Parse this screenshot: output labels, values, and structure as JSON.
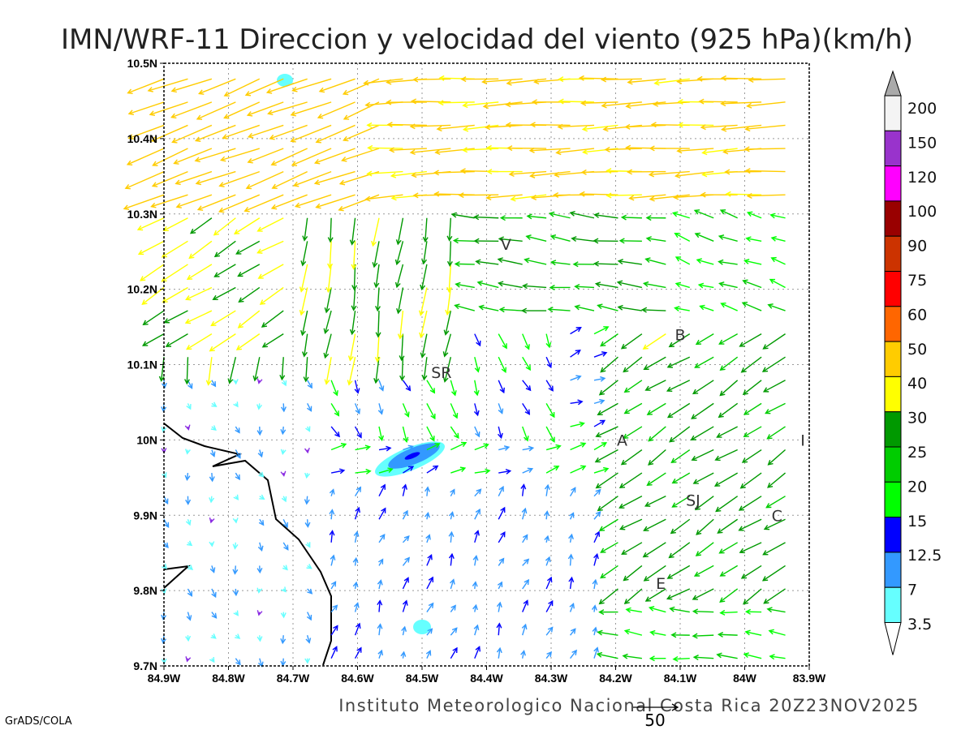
{
  "title": "IMN/WRF-11 Direccion y velocidad del viento (925 hPa)(km/h)",
  "footer": "Instituto Meteorologico Nacional Costa Rica  20Z23NOV2025",
  "credit": "GrADS/COLA",
  "ref_vector": {
    "label": "50",
    "value": 50
  },
  "chart_data": {
    "type": "vector-field",
    "lon_range": [
      -84.9,
      -83.9
    ],
    "lat_range": [
      9.7,
      10.5
    ],
    "x_ticks": [
      "84.9W",
      "84.8W",
      "84.7W",
      "84.6W",
      "84.5W",
      "84.4W",
      "84.3W",
      "84.2W",
      "84.1W",
      "84W",
      "83.9W"
    ],
    "y_ticks": [
      "9.7N",
      "9.8N",
      "9.9N",
      "10N",
      "10.1N",
      "10.2N",
      "10.3N",
      "10.4N",
      "10.5N"
    ],
    "grid": true,
    "stations": [
      {
        "label": "V",
        "lon": -84.37,
        "lat": 10.26
      },
      {
        "label": "SR",
        "lon": -84.47,
        "lat": 10.09
      },
      {
        "label": "B",
        "lon": -84.1,
        "lat": 10.14
      },
      {
        "label": "A",
        "lon": -84.19,
        "lat": 10.0
      },
      {
        "label": "I",
        "lon": -83.91,
        "lat": 10.0
      },
      {
        "label": "SJ",
        "lon": -84.08,
        "lat": 9.92
      },
      {
        "label": "C",
        "lon": -83.95,
        "lat": 9.9
      },
      {
        "label": "E",
        "lon": -84.13,
        "lat": 9.81
      }
    ]
  },
  "colorbar": {
    "labels": [
      "200",
      "150",
      "120",
      "100",
      "90",
      "75",
      "60",
      "50",
      "40",
      "30",
      "25",
      "20",
      "15",
      "12.5",
      "7",
      "3.5"
    ],
    "colors": [
      "#f4f4f4",
      "#9933cc",
      "#ff00ff",
      "#990000",
      "#cc3300",
      "#ff0000",
      "#ff6600",
      "#ffcc00",
      "#ffff00",
      "#009900",
      "#00cc00",
      "#00ff00",
      "#0000ff",
      "#3399ff",
      "#66ffff"
    ],
    "over_color": "#aaaaaa",
    "under_color": "#ffffff",
    "weak_color": "#8a2be2"
  }
}
